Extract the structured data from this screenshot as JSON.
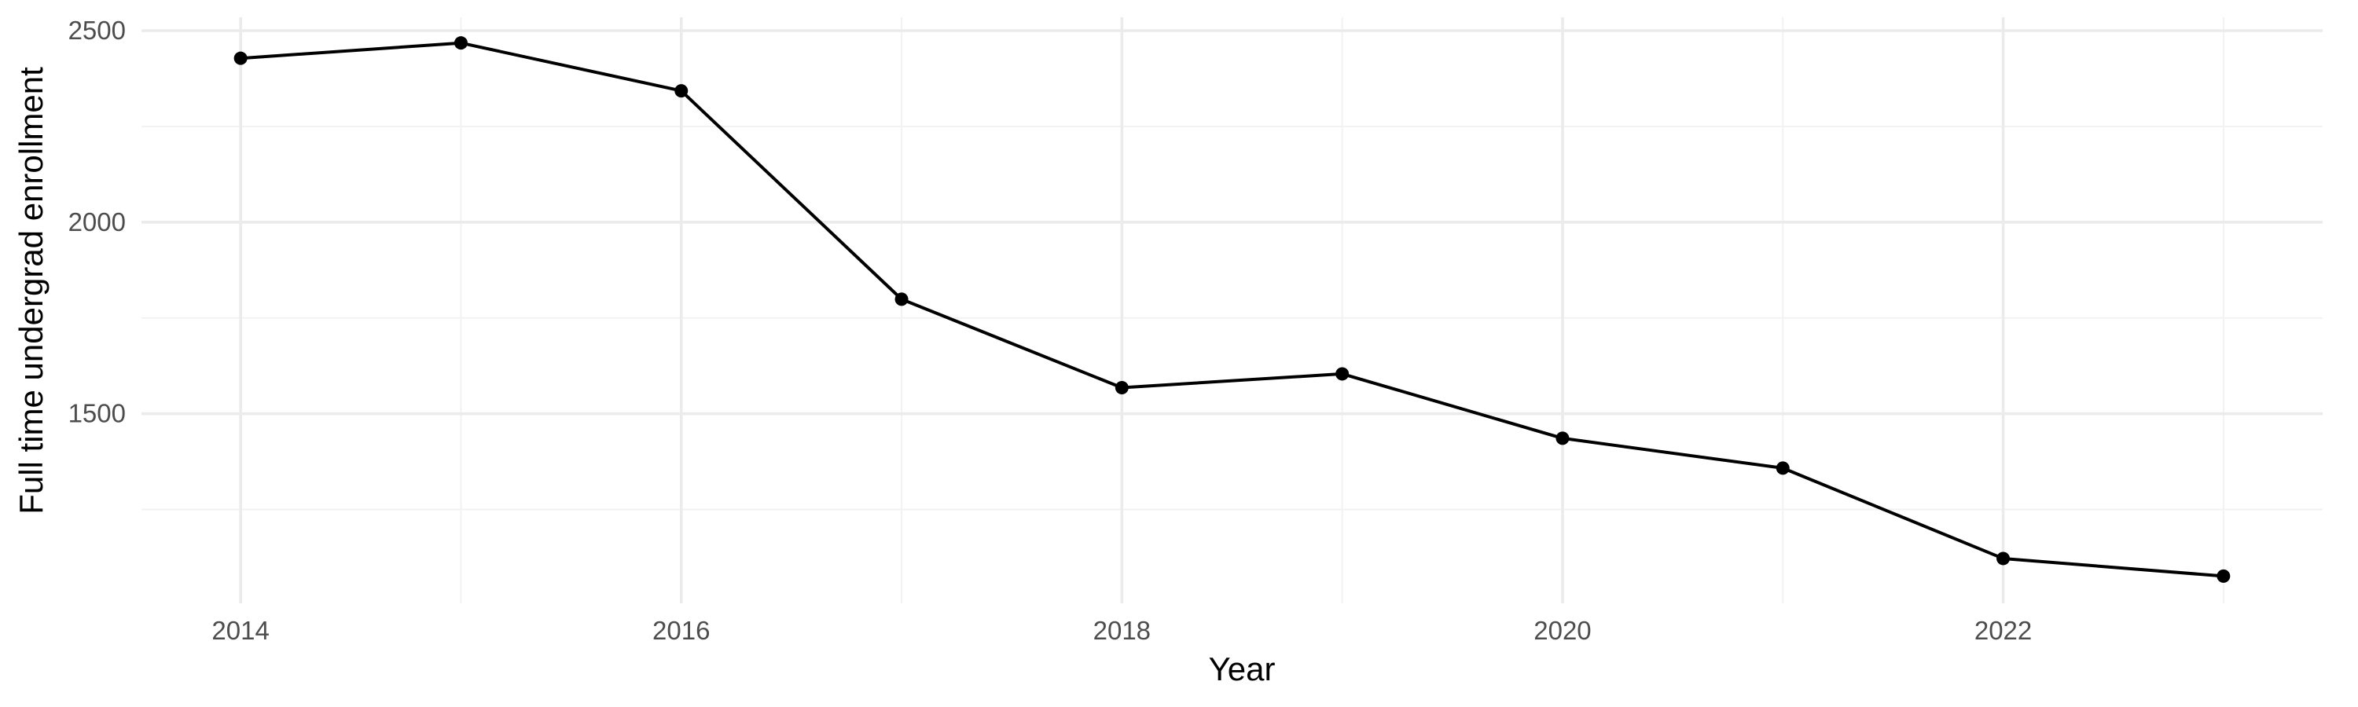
{
  "chart_data": {
    "type": "line",
    "title": "",
    "xlabel": "Year",
    "ylabel": "Full time undergrad enrollment",
    "x": [
      2014,
      2015,
      2016,
      2017,
      2018,
      2019,
      2020,
      2021,
      2022,
      2023
    ],
    "series": [
      {
        "values": [
          2428,
          2468,
          2343,
          1799,
          1568,
          1604,
          1436,
          1358,
          1122,
          1076
        ]
      }
    ],
    "xlim": [
      2013.55,
      2023.45
    ],
    "ylim": [
      1005,
      2535
    ],
    "x_ticks": [
      2014,
      2016,
      2018,
      2020,
      2022
    ],
    "x_tick_labels": [
      "2014",
      "2016",
      "2018",
      "2020",
      "2022"
    ],
    "y_ticks": [
      1500,
      2000,
      2500
    ],
    "y_tick_labels": [
      "1500",
      "2000",
      "2500"
    ],
    "x_minor_ticks": [
      2015,
      2017,
      2019,
      2021,
      2023
    ],
    "y_minor_ticks": [
      1250,
      1750,
      2250
    ],
    "grid": true,
    "legend": "none",
    "colors": {
      "line": "#000000",
      "points": "#000000",
      "grid_major": "#ebebeb",
      "grid_minor": "#f2f2f2",
      "tick_label": "#4d4d4d",
      "background": "#ffffff"
    }
  }
}
